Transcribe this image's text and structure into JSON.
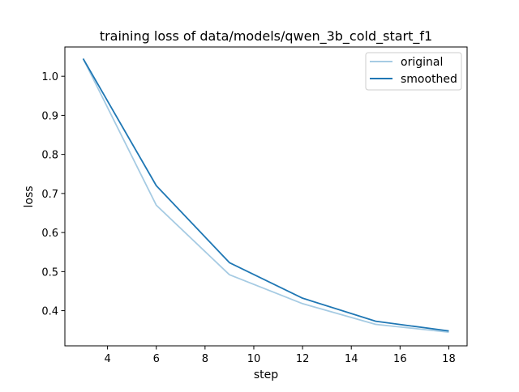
{
  "chart_data": {
    "type": "line",
    "title": "training loss of data/models/qwen_3b_cold_start_f1",
    "xlabel": "step",
    "ylabel": "loss",
    "xlim": [
      2.25,
      18.75
    ],
    "ylim": [
      0.31,
      1.075
    ],
    "xticks": [
      4,
      6,
      8,
      10,
      12,
      14,
      16,
      18
    ],
    "xtick_labels": [
      "4",
      "6",
      "8",
      "10",
      "12",
      "14",
      "16",
      "18"
    ],
    "yticks": [
      0.4,
      0.5,
      0.6,
      0.7,
      0.8,
      0.9,
      1.0
    ],
    "ytick_labels": [
      "0.4",
      "0.5",
      "0.6",
      "0.7",
      "0.8",
      "0.9",
      "1.0"
    ],
    "grid": false,
    "legend_position": "top-right",
    "series": [
      {
        "name": "original",
        "color": "#a6cbe3",
        "x": [
          3,
          6,
          9,
          12,
          15,
          18
        ],
        "y": [
          1.045,
          0.67,
          0.492,
          0.418,
          0.365,
          0.345
        ]
      },
      {
        "name": "smoothed",
        "color": "#1f77b4",
        "x": [
          3,
          6,
          9,
          12,
          15,
          18
        ],
        "y": [
          1.045,
          0.72,
          0.523,
          0.432,
          0.373,
          0.348
        ]
      }
    ]
  }
}
